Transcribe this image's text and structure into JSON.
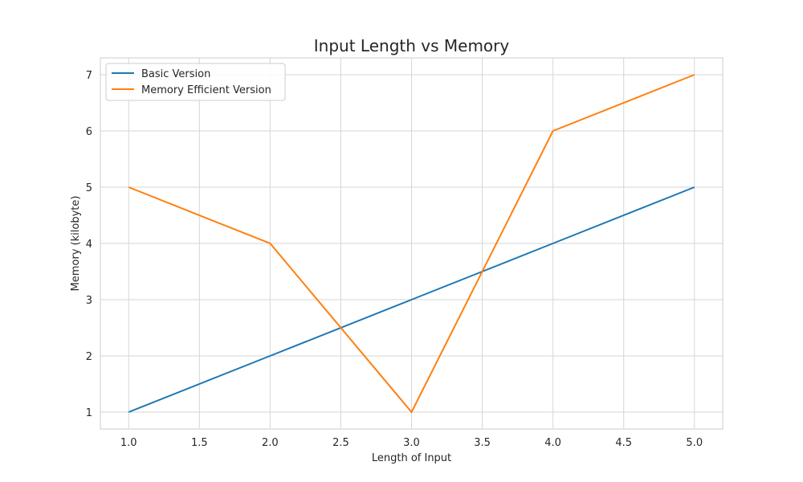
{
  "chart_data": {
    "type": "line",
    "title": "Input Length vs Memory",
    "xlabel": "Length of Input",
    "ylabel": "Memory (kilobyte)",
    "x": [
      1,
      2,
      3,
      4,
      5
    ],
    "xlim": [
      0.8,
      5.2
    ],
    "ylim": [
      0.7,
      7.3
    ],
    "x_ticks": [
      "1.0",
      "1.5",
      "2.0",
      "2.5",
      "3.0",
      "3.5",
      "4.0",
      "4.5",
      "5.0"
    ],
    "y_ticks": [
      "1",
      "2",
      "3",
      "4",
      "5",
      "6",
      "7"
    ],
    "grid": true,
    "legend_position": "top-left",
    "series": [
      {
        "name": "Basic Version",
        "color": "#1f77b4",
        "values": [
          1,
          2,
          3,
          4,
          5
        ]
      },
      {
        "name": "Memory Efficient Version",
        "color": "#ff7f0e",
        "values": [
          5,
          4,
          1,
          6,
          7
        ]
      }
    ]
  }
}
